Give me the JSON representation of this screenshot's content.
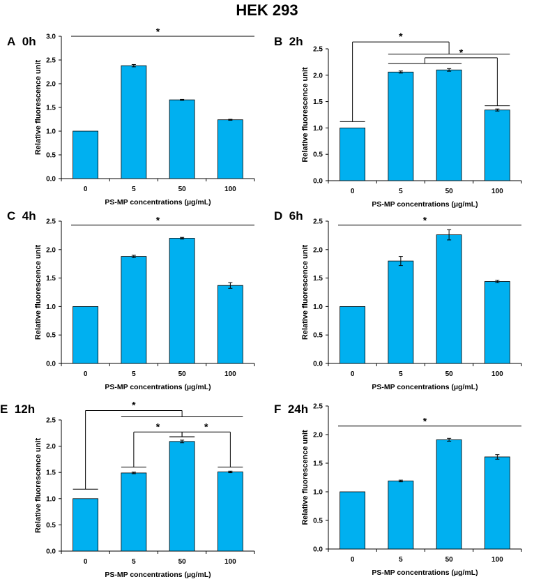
{
  "title": "HEK 293",
  "colors": {
    "bar": "#00B0F0",
    "axis": "#000000"
  },
  "chart_data": [
    {
      "type": "bar",
      "letter": "A",
      "time": "0h",
      "categories": [
        "0",
        "5",
        "50",
        "100"
      ],
      "values": [
        1.0,
        2.38,
        1.66,
        1.24
      ],
      "errors": [
        0,
        0.025,
        0.01,
        0.01
      ],
      "ylim": [
        0,
        3.0
      ],
      "yticks": [
        "0.0",
        "0.5",
        "1.0",
        "1.5",
        "2.0",
        "2.5",
        "3.0"
      ],
      "ystep": 0.5,
      "xlabel": "PS-MP concentrations (µg/mL)",
      "ylabel": "Relative fluorescence unit",
      "annotations": [
        {
          "type": "line",
          "label": "*",
          "level": 3
        }
      ]
    },
    {
      "type": "bar",
      "letter": "B",
      "time": "2h",
      "categories": [
        "0",
        "5",
        "50",
        "100"
      ],
      "values": [
        1.0,
        2.06,
        2.1,
        1.34
      ],
      "errors": [
        0,
        0.02,
        0.025,
        0.02
      ],
      "ylim": [
        0,
        2.5
      ],
      "yticks": [
        "0.0",
        "0.5",
        "1.0",
        "1.5",
        "2.0",
        "2.5"
      ],
      "ystep": 0.5,
      "xlabel": "PS-MP concentrations (µg/mL)",
      "ylabel": "Relative fluorescence unit",
      "annotations": [
        {
          "type": "bracket",
          "label": "*",
          "from": 0,
          "to": [
            1,
            2,
            3
          ],
          "top": 2.63,
          "fromBase": 1.12,
          "toBase": 2.4
        },
        {
          "type": "bracket",
          "label": "*",
          "from": 3,
          "to": [
            1,
            2
          ],
          "top": 2.33,
          "fromBase": 1.42,
          "toBase": 2.22
        }
      ]
    },
    {
      "type": "bar",
      "letter": "C",
      "time": "4h",
      "categories": [
        "0",
        "5",
        "50",
        "100"
      ],
      "values": [
        1.0,
        1.88,
        2.2,
        1.37
      ],
      "errors": [
        0,
        0.02,
        0.015,
        0.05
      ],
      "ylim": [
        0,
        2.5
      ],
      "yticks": [
        "0.0",
        "0.5",
        "1.0",
        "1.5",
        "2.0",
        "2.5"
      ],
      "ystep": 0.5,
      "xlabel": "PS-MP concentrations (µg/mL)",
      "ylabel": "Relative fluorescence unit",
      "annotations": [
        {
          "type": "line",
          "label": "*",
          "level": 2.43
        }
      ]
    },
    {
      "type": "bar",
      "letter": "D",
      "time": "6h",
      "categories": [
        "0",
        "5",
        "50",
        "100"
      ],
      "values": [
        1.0,
        1.8,
        2.26,
        1.44
      ],
      "errors": [
        0,
        0.08,
        0.09,
        0.02
      ],
      "ylim": [
        0,
        2.5
      ],
      "yticks": [
        "0.0",
        "0.5",
        "1.0",
        "1.5",
        "2.0",
        "2.5"
      ],
      "ystep": 0.5,
      "xlabel": "PS-MP concentrations (µg/mL)",
      "ylabel": "Relative fluorescence unit",
      "annotations": [
        {
          "type": "line",
          "label": "*",
          "level": 2.43
        }
      ]
    },
    {
      "type": "bar",
      "letter": "E",
      "time": "12h",
      "categories": [
        "0",
        "5",
        "50",
        "100"
      ],
      "values": [
        1.0,
        1.49,
        2.09,
        1.51
      ],
      "errors": [
        0,
        0.015,
        0.025,
        0.015
      ],
      "ylim": [
        0,
        2.5
      ],
      "yticks": [
        "0.0",
        "0.5",
        "1.0",
        "1.5",
        "2.0",
        "2.5"
      ],
      "ystep": 0.5,
      "xlabel": "PS-MP concentrations (µg/mL)",
      "ylabel": "Relative fluorescence unit",
      "annotations": [
        {
          "type": "bracket",
          "label": "*",
          "from": 0,
          "to": [
            1,
            2,
            3
          ],
          "top": 2.68,
          "fromBase": 1.18,
          "toBase": 2.56
        },
        {
          "type": "bracket",
          "label": "*",
          "from": 1,
          "to": [
            2
          ],
          "top": 2.27,
          "fromBase": 1.6,
          "toBase": 2.18
        },
        {
          "type": "bracket",
          "label": "*",
          "from": 3,
          "to": [
            2
          ],
          "top": 2.27,
          "fromBase": 1.6,
          "toBase": 2.18
        }
      ]
    },
    {
      "type": "bar",
      "letter": "F",
      "time": "24h",
      "categories": [
        "0",
        "5",
        "50",
        "100"
      ],
      "values": [
        1.0,
        1.19,
        1.91,
        1.61
      ],
      "errors": [
        0,
        0.015,
        0.025,
        0.04
      ],
      "ylim": [
        0,
        2.5
      ],
      "yticks": [
        "0.0",
        "0.5",
        "1.0",
        "1.5",
        "2.0",
        "2.5"
      ],
      "ystep": 0.5,
      "xlabel": "PS-MP concentrations (µg/mL)",
      "ylabel": "Relative fluorescence unit",
      "annotations": [
        {
          "type": "line",
          "label": "*",
          "level": 2.15
        }
      ]
    }
  ]
}
